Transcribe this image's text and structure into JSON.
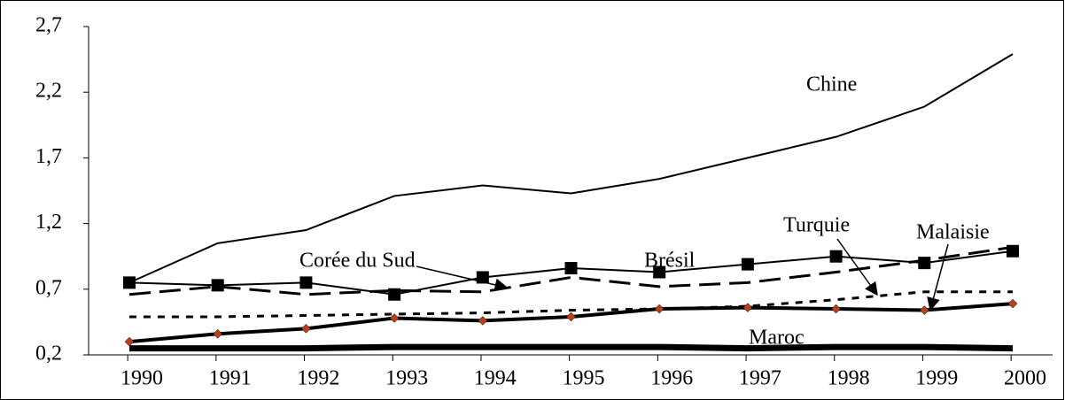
{
  "chart_data": {
    "type": "line",
    "categories": [
      "1990",
      "1991",
      "1992",
      "1993",
      "1994",
      "1995",
      "1996",
      "1997",
      "1998",
      "1999",
      "2000"
    ],
    "series": [
      {
        "name": "Chine",
        "color": "#000000",
        "line_style": "solid-thin",
        "values": [
          0.75,
          1.05,
          1.15,
          1.41,
          1.49,
          1.43,
          1.54,
          1.7,
          1.86,
          2.09,
          2.49
        ]
      },
      {
        "name": "Brésil",
        "color": "#000000",
        "line_style": "solid",
        "marker": "square",
        "values": [
          0.75,
          0.73,
          0.75,
          0.66,
          0.79,
          0.86,
          0.83,
          0.89,
          0.95,
          0.9,
          0.99
        ]
      },
      {
        "name": "Corée du Sud",
        "color": "#000000",
        "line_style": "dashed",
        "values": [
          0.66,
          0.72,
          0.66,
          0.69,
          0.68,
          0.79,
          0.72,
          0.75,
          0.83,
          0.92,
          1.02
        ]
      },
      {
        "name": "Turquie",
        "color": "#000000",
        "line_style": "dotted",
        "values": [
          0.49,
          0.49,
          0.5,
          0.51,
          0.52,
          0.54,
          0.55,
          0.57,
          0.62,
          0.68,
          0.68
        ]
      },
      {
        "name": "Malaisie",
        "color": "#000000",
        "line_style": "solid-thick",
        "marker": "diamond",
        "marker_color": "#b5401a",
        "values": [
          0.3,
          0.36,
          0.4,
          0.48,
          0.46,
          0.49,
          0.55,
          0.56,
          0.55,
          0.54,
          0.59
        ]
      },
      {
        "name": "Maroc",
        "color": "#000000",
        "line_style": "solid-heavy",
        "values": [
          0.25,
          0.25,
          0.25,
          0.26,
          0.26,
          0.26,
          0.26,
          0.25,
          0.26,
          0.26,
          0.25
        ]
      }
    ],
    "ylim": [
      0.2,
      2.7
    ],
    "yticks": [
      {
        "value": 0.2,
        "label": "0,2"
      },
      {
        "value": 0.7,
        "label": "0,7"
      },
      {
        "value": 1.2,
        "label": "1,2"
      },
      {
        "value": 1.7,
        "label": "1,7"
      },
      {
        "value": 2.2,
        "label": "2,2"
      },
      {
        "value": 2.7,
        "label": "2,7"
      }
    ],
    "grid": false
  }
}
